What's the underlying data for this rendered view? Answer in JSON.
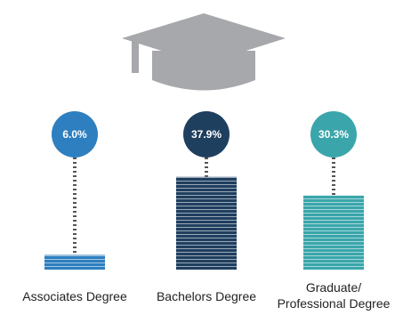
{
  "chart_data": {
    "type": "bar",
    "categories": [
      [
        "Associates Degree"
      ],
      [
        "Bachelors Degree"
      ],
      [
        "Graduate/",
        "Professional Degree"
      ]
    ],
    "values": [
      6.0,
      37.9,
      30.3
    ],
    "value_labels": [
      "6.0%",
      "37.9%",
      "30.3%"
    ],
    "colors": [
      "#2e7fbf",
      "#1f3f5f",
      "#3aa6ab"
    ],
    "icon": "graduation-cap-icon",
    "legend": "none",
    "grid": false
  }
}
